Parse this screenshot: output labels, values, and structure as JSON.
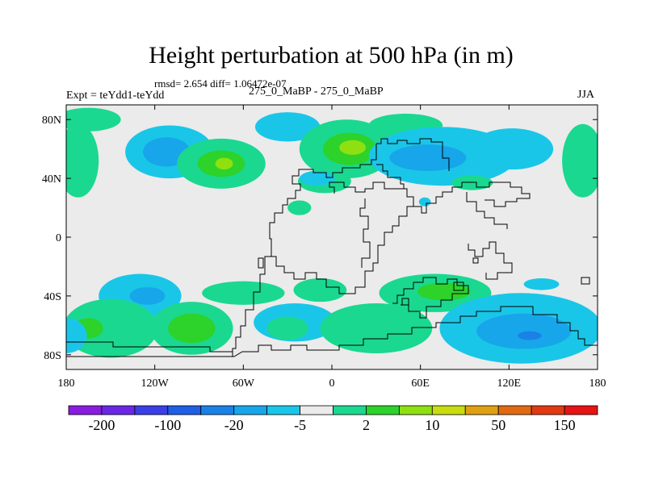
{
  "chart_data": {
    "type": "heatmap",
    "title": "Height perturbation at 500 hPa (in m)",
    "stats_text": "rmsd= 2.654  diff= 1.06472e-07",
    "left_label": "Expt = teYdd1-teYdd",
    "center_label": "275_0_MaBP - 275_0_MaBP",
    "right_label": "JJA",
    "x_ticks": [
      "180",
      "120W",
      "60W",
      "0",
      "60E",
      "120E",
      "180"
    ],
    "x_tick_values": [
      -180,
      -120,
      -60,
      0,
      60,
      120,
      180
    ],
    "y_ticks": [
      "80N",
      "40N",
      "0",
      "40S",
      "80S"
    ],
    "y_tick_values": [
      80,
      40,
      0,
      -40,
      -80
    ],
    "xlim": [
      -180,
      180
    ],
    "ylim": [
      -90,
      90
    ],
    "colorbar": {
      "labels": [
        "-200",
        "-100",
        "-20",
        "-5",
        "2",
        "10",
        "50",
        "150"
      ],
      "label_bins": [
        1,
        3,
        5,
        7,
        9,
        11,
        13,
        15
      ],
      "colors": [
        "#8a1be0",
        "#6a28e6",
        "#3a3fe8",
        "#1f5fe6",
        "#1a82e6",
        "#17a6ea",
        "#1ac6e8",
        "#ebebeb",
        "#1ad890",
        "#2dd22a",
        "#8ee010",
        "#c8dc10",
        "#e0a012",
        "#e06a12",
        "#e03a12",
        "#e61414"
      ]
    },
    "anomalies": [
      {
        "lon": -165,
        "lat": 80,
        "rx": 22,
        "ry": 8,
        "level": 1
      },
      {
        "lon": -172,
        "lat": 52,
        "rx": 14,
        "ry": 25,
        "level": 1
      },
      {
        "lon": -110,
        "lat": 58,
        "rx": 30,
        "ry": 18,
        "level": -1
      },
      {
        "lon": -112,
        "lat": 58,
        "rx": 16,
        "ry": 10,
        "level": -2
      },
      {
        "lon": -75,
        "lat": 50,
        "rx": 30,
        "ry": 17,
        "level": 1
      },
      {
        "lon": -75,
        "lat": 50,
        "rx": 16,
        "ry": 9,
        "level": 2
      },
      {
        "lon": -73,
        "lat": 50,
        "rx": 6,
        "ry": 4,
        "level": 3
      },
      {
        "lon": -30,
        "lat": 75,
        "rx": 22,
        "ry": 10,
        "level": -1
      },
      {
        "lon": 10,
        "lat": 60,
        "rx": 32,
        "ry": 20,
        "level": 1
      },
      {
        "lon": 12,
        "lat": 60,
        "rx": 18,
        "ry": 11,
        "level": 2
      },
      {
        "lon": 14,
        "lat": 61,
        "rx": 9,
        "ry": 5,
        "level": 3
      },
      {
        "lon": -5,
        "lat": 38,
        "rx": 18,
        "ry": 8,
        "level": 1
      },
      {
        "lon": -10,
        "lat": 40,
        "rx": 12,
        "ry": 5,
        "level": -1
      },
      {
        "lon": 50,
        "lat": 76,
        "rx": 25,
        "ry": 8,
        "level": 1
      },
      {
        "lon": 75,
        "lat": 55,
        "rx": 50,
        "ry": 20,
        "level": -1
      },
      {
        "lon": 65,
        "lat": 54,
        "rx": 26,
        "ry": 9,
        "level": -2
      },
      {
        "lon": 122,
        "lat": 60,
        "rx": 28,
        "ry": 14,
        "level": -1
      },
      {
        "lon": 170,
        "lat": 52,
        "rx": 14,
        "ry": 25,
        "level": 1
      },
      {
        "lon": 95,
        "lat": 37,
        "rx": 14,
        "ry": 5,
        "level": 1
      },
      {
        "lon": -22,
        "lat": 20,
        "rx": 8,
        "ry": 5,
        "level": 1
      },
      {
        "lon": 63,
        "lat": 24,
        "rx": 4,
        "ry": 3,
        "level": -1
      },
      {
        "lon": -130,
        "lat": -40,
        "rx": 28,
        "ry": 15,
        "level": -1
      },
      {
        "lon": -125,
        "lat": -40,
        "rx": 12,
        "ry": 6,
        "level": -2
      },
      {
        "lon": -60,
        "lat": -38,
        "rx": 28,
        "ry": 8,
        "level": 1
      },
      {
        "lon": -8,
        "lat": -36,
        "rx": 18,
        "ry": 8,
        "level": 1
      },
      {
        "lon": 70,
        "lat": -38,
        "rx": 38,
        "ry": 13,
        "level": 1
      },
      {
        "lon": 76,
        "lat": -37,
        "rx": 18,
        "ry": 6,
        "level": 2
      },
      {
        "lon": 142,
        "lat": -32,
        "rx": 12,
        "ry": 4,
        "level": -1
      },
      {
        "lon": -150,
        "lat": -62,
        "rx": 32,
        "ry": 20,
        "level": 1
      },
      {
        "lon": -165,
        "lat": -62,
        "rx": 10,
        "ry": 7,
        "level": 2
      },
      {
        "lon": -95,
        "lat": -62,
        "rx": 28,
        "ry": 18,
        "level": 1
      },
      {
        "lon": -95,
        "lat": -62,
        "rx": 16,
        "ry": 10,
        "level": 2
      },
      {
        "lon": -25,
        "lat": -58,
        "rx": 28,
        "ry": 13,
        "level": -1
      },
      {
        "lon": -30,
        "lat": -62,
        "rx": 14,
        "ry": 8,
        "level": 1
      },
      {
        "lon": 30,
        "lat": -62,
        "rx": 38,
        "ry": 17,
        "level": 1
      },
      {
        "lon": 128,
        "lat": -62,
        "rx": 55,
        "ry": 24,
        "level": -1
      },
      {
        "lon": 130,
        "lat": -64,
        "rx": 32,
        "ry": 12,
        "level": -2
      },
      {
        "lon": 134,
        "lat": -67,
        "rx": 8,
        "ry": 3,
        "level": -3
      },
      {
        "lon": -180,
        "lat": -67,
        "rx": 14,
        "ry": 12,
        "level": -1
      }
    ]
  }
}
